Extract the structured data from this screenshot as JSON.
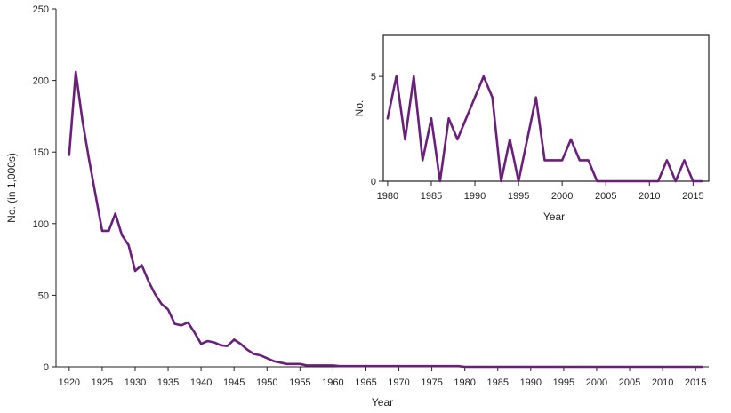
{
  "chart_data": [
    {
      "type": "line",
      "title": "",
      "xlabel": "Year",
      "ylabel": "No. (in 1,000s)",
      "xlim": [
        1918,
        2017
      ],
      "ylim": [
        0,
        250
      ],
      "xticks": [
        1920,
        1925,
        1930,
        1935,
        1940,
        1945,
        1950,
        1955,
        1960,
        1965,
        1970,
        1975,
        1980,
        1985,
        1990,
        1995,
        2000,
        2005,
        2010,
        2015
      ],
      "yticks": [
        0,
        50,
        100,
        150,
        200,
        250
      ],
      "grid": false,
      "color": "#6b1f7c",
      "series": [
        {
          "x": [
            1920,
            1921,
            1922,
            1923,
            1924,
            1925,
            1926,
            1927,
            1928,
            1929,
            1930,
            1931,
            1932,
            1933,
            1934,
            1935,
            1936,
            1937,
            1938,
            1939,
            1940,
            1941,
            1942,
            1943,
            1944,
            1945,
            1946,
            1947,
            1948,
            1949,
            1950,
            1951,
            1952,
            1953,
            1954,
            1955,
            1956,
            1957,
            1958,
            1959,
            1960,
            1961,
            1962,
            1963,
            1964,
            1965,
            1966,
            1967,
            1968,
            1969,
            1970,
            1971,
            1972,
            1973,
            1974,
            1975,
            1976,
            1977,
            1978,
            1979,
            1980,
            1981,
            1982,
            1983,
            1984,
            1985,
            1986,
            1987,
            1988,
            1989,
            1990,
            1991,
            1992,
            1993,
            1994,
            1995,
            1996,
            1997,
            1998,
            1999,
            2000,
            2001,
            2002,
            2003,
            2004,
            2005,
            2006,
            2007,
            2008,
            2009,
            2010,
            2011,
            2012,
            2013,
            2014,
            2015,
            2016
          ],
          "y": [
            148,
            206,
            172,
            145,
            120,
            95,
            95,
            107,
            92,
            85,
            67,
            71,
            60,
            51,
            44,
            40,
            30,
            29,
            31,
            24,
            16,
            18,
            17,
            15,
            14.5,
            19,
            16,
            12,
            9,
            8,
            6,
            4,
            3,
            2,
            2,
            2,
            1,
            1,
            1,
            1,
            1,
            0.5,
            0.5,
            0.5,
            0.5,
            0.5,
            0.5,
            0.5,
            0.5,
            0.5,
            0.5,
            0.5,
            0.5,
            0.5,
            0.5,
            0.5,
            0.5,
            0.5,
            0.5,
            0.5,
            0.003,
            0.005,
            0.002,
            0.005,
            0.001,
            0.003,
            0,
            0.003,
            0.002,
            0.003,
            0.004,
            0.005,
            0.004,
            0,
            0.002,
            0,
            0.002,
            0.004,
            0.001,
            0.001,
            0.001,
            0.002,
            0.001,
            0.001,
            0,
            0,
            0,
            0,
            0,
            0,
            0,
            0,
            0.001,
            0,
            0.001,
            0,
            0
          ]
        }
      ]
    },
    {
      "type": "line",
      "title": "",
      "xlabel": "Year",
      "ylabel": "No.",
      "xlim": [
        1979.5,
        2016.8
      ],
      "ylim": [
        0,
        7
      ],
      "xticks": [
        1980,
        1985,
        1990,
        1995,
        2000,
        2005,
        2010,
        2015
      ],
      "yticks": [
        0,
        5
      ],
      "grid": false,
      "color": "#6b1f7c",
      "series": [
        {
          "x": [
            1980,
            1981,
            1982,
            1983,
            1984,
            1985,
            1986,
            1987,
            1988,
            1989,
            1990,
            1991,
            1992,
            1993,
            1994,
            1995,
            1996,
            1997,
            1998,
            1999,
            2000,
            2001,
            2002,
            2003,
            2004,
            2005,
            2006,
            2007,
            2008,
            2009,
            2010,
            2011,
            2012,
            2013,
            2014,
            2015,
            2016
          ],
          "y": [
            3,
            5,
            2,
            5,
            1,
            3,
            0,
            3,
            2,
            3,
            4,
            5,
            4,
            0,
            2,
            0,
            2,
            4,
            1,
            1,
            1,
            2,
            1,
            1,
            0,
            0,
            0,
            0,
            0,
            0,
            0,
            0,
            1,
            0,
            1,
            0,
            0
          ]
        }
      ]
    }
  ]
}
